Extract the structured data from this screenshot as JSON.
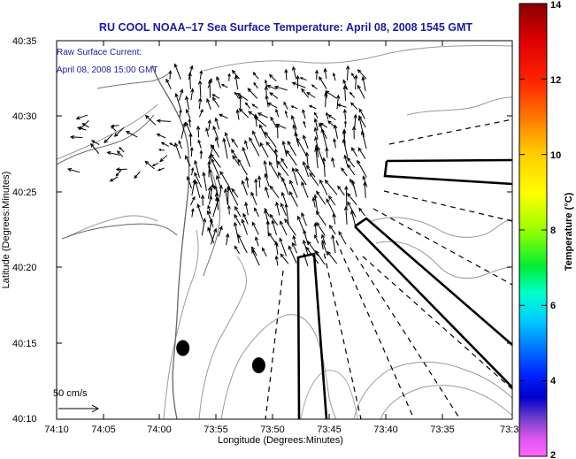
{
  "chart_data": {
    "type": "map",
    "title": "RU COOL  NOAA–17  Sea Surface Temperature:  April 08, 2008 1545 GMT",
    "xlabel": "Longitude (Degrees:Minutes)",
    "ylabel": "Latitude (Degrees:Minutes)",
    "annotation_lines": [
      "Raw Surface Current:",
      "April 08, 2008 15:00 GMT"
    ],
    "scale_label": "50 cm/s",
    "x_ticks": [
      "74:10",
      "74:05",
      "74:00",
      "73:55",
      "73:50",
      "73:45",
      "73:40",
      "73:35",
      "73:3"
    ],
    "y_ticks": [
      "40:35",
      "40:30",
      "40:25",
      "40:20",
      "40:15",
      "40:10"
    ],
    "xlim": [
      -74.1667,
      -73.5
    ],
    "ylim": [
      40.1667,
      40.5833
    ],
    "colorbar": {
      "label": "Temperature (°C)",
      "range": [
        2,
        14
      ],
      "ticks": [
        "14",
        "12",
        "10",
        "8",
        "6",
        "4",
        "2"
      ],
      "colors": [
        "#990000",
        "#ff0000",
        "#ff8800",
        "#ffff00",
        "#88ff00",
        "#00ee00",
        "#00ffcc",
        "#00ccff",
        "#0066ff",
        "#0000ee",
        "#8844cc",
        "#ff66ff"
      ]
    },
    "markers": [
      {
        "name": "dot-west",
        "lon": -73.982,
        "lat": 40.245
      },
      {
        "name": "dot-east",
        "lon": -73.871,
        "lat": 40.226
      }
    ]
  }
}
